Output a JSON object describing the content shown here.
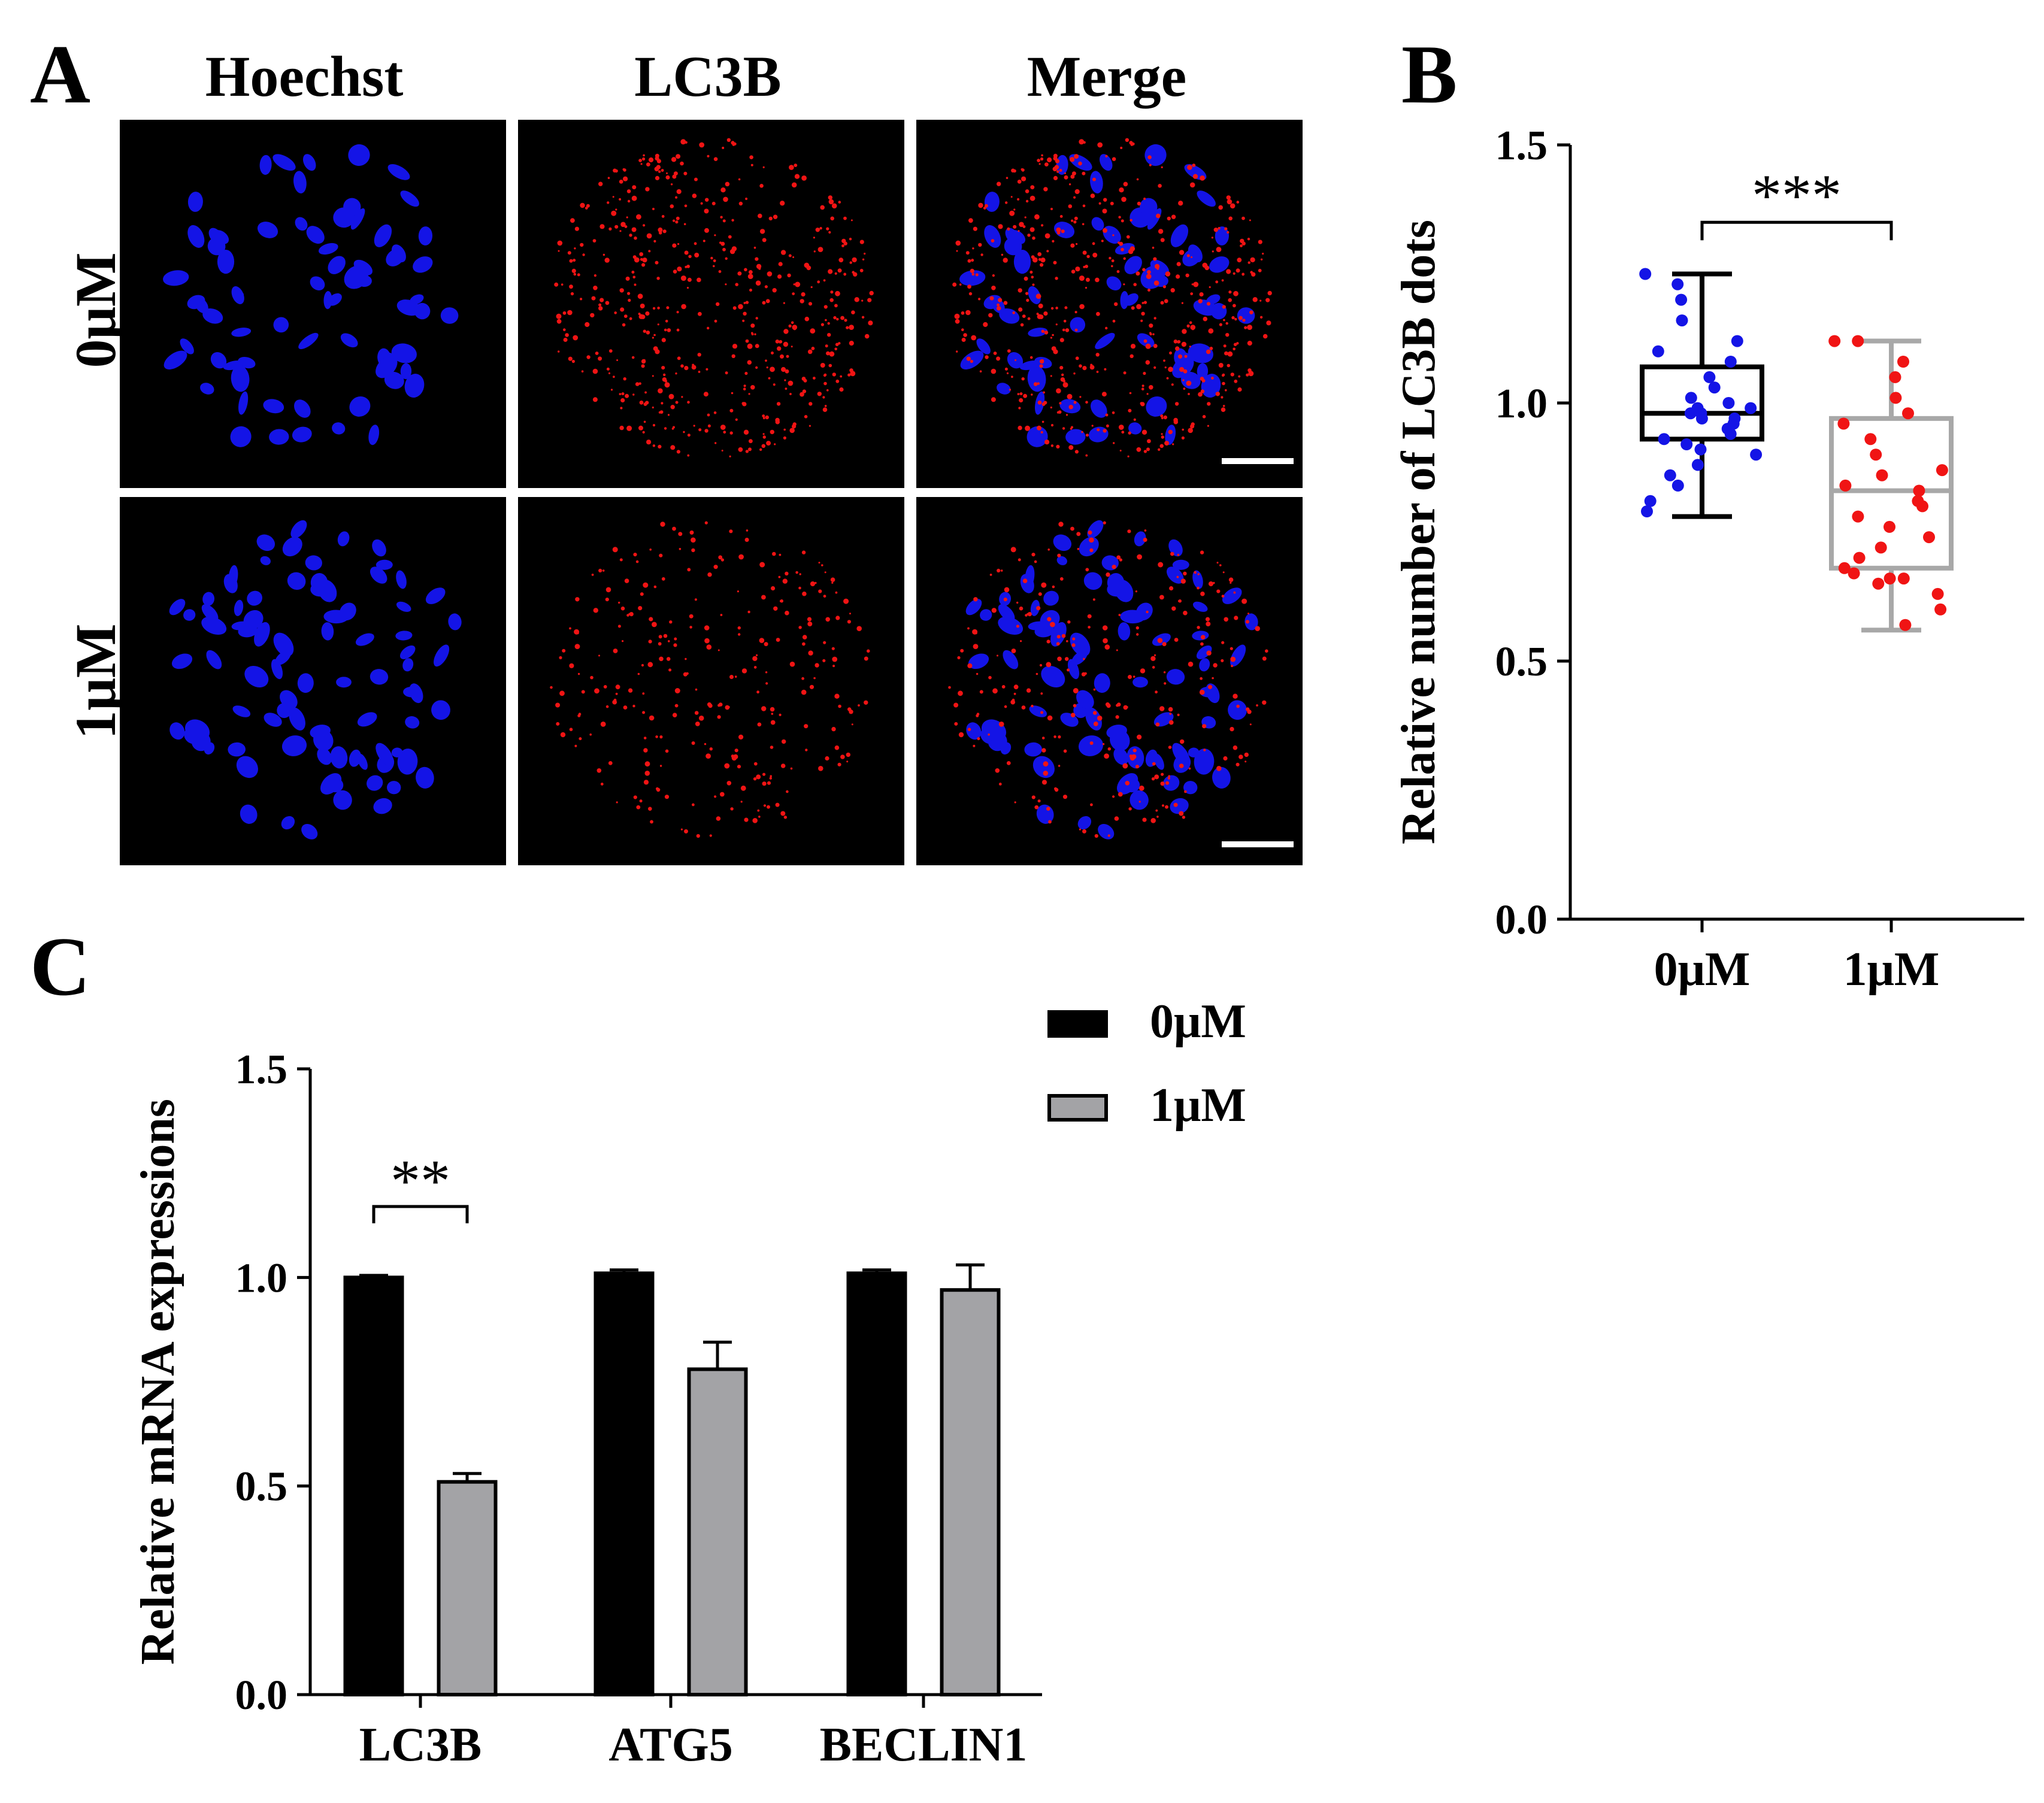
{
  "panels": {
    "a": {
      "letter": "A",
      "columns": [
        "Hoechst",
        "LC3B",
        "Merge"
      ],
      "rows": [
        "0μM",
        "1μM"
      ]
    },
    "b": {
      "letter": "B"
    },
    "c": {
      "letter": "C"
    }
  },
  "colors": {
    "blue": "#1414e6",
    "red": "#f01414",
    "black": "#000000",
    "gray": "#a3a3a6",
    "box_gray": "#a8a8a8"
  },
  "chart_data": [
    {
      "type": "box",
      "panel": "B",
      "ylabel": "Relative number of LC3B dots",
      "ylim": [
        0,
        1.5
      ],
      "yticks": [
        "0.0",
        "0.5",
        "1.0",
        "1.5"
      ],
      "categories": [
        "0μM",
        "1μM"
      ],
      "significance": "***",
      "boxes": [
        {
          "name": "0μM",
          "min": 0.78,
          "q1": 0.93,
          "median": 0.98,
          "q3": 1.07,
          "max": 1.25,
          "points": [
            1.25,
            1.23,
            1.2,
            1.16,
            1.12,
            1.1,
            1.08,
            1.05,
            1.03,
            1.01,
            1.0,
            0.99,
            0.99,
            0.98,
            0.98,
            0.97,
            0.97,
            0.96,
            0.95,
            0.94,
            0.93,
            0.92,
            0.91,
            0.9,
            0.88,
            0.86,
            0.84,
            0.81,
            0.79
          ]
        },
        {
          "name": "1μM",
          "min": 0.56,
          "q1": 0.68,
          "median": 0.83,
          "q3": 0.97,
          "max": 1.12,
          "points": [
            1.12,
            1.12,
            1.08,
            1.05,
            1.01,
            0.98,
            0.96,
            0.93,
            0.9,
            0.87,
            0.86,
            0.84,
            0.83,
            0.81,
            0.8,
            0.78,
            0.76,
            0.74,
            0.72,
            0.7,
            0.68,
            0.67,
            0.66,
            0.66,
            0.65,
            0.63,
            0.6,
            0.57
          ]
        }
      ]
    },
    {
      "type": "bar",
      "panel": "C",
      "ylabel": "Relative mRNA expressions",
      "ylim": [
        0,
        1.5
      ],
      "yticks": [
        "0.0",
        "0.5",
        "1.0",
        "1.5"
      ],
      "categories": [
        "LC3B",
        "ATG5",
        "BECLIN1"
      ],
      "series": [
        {
          "name": "0μM",
          "values": [
            1.0,
            1.01,
            1.01
          ],
          "errors": [
            0.005,
            0.008,
            0.008
          ]
        },
        {
          "name": "1μM",
          "values": [
            0.51,
            0.78,
            0.97
          ],
          "errors": [
            0.02,
            0.065,
            0.06
          ]
        }
      ],
      "significance": [
        {
          "category": "LC3B",
          "label": "**"
        }
      ]
    }
  ]
}
